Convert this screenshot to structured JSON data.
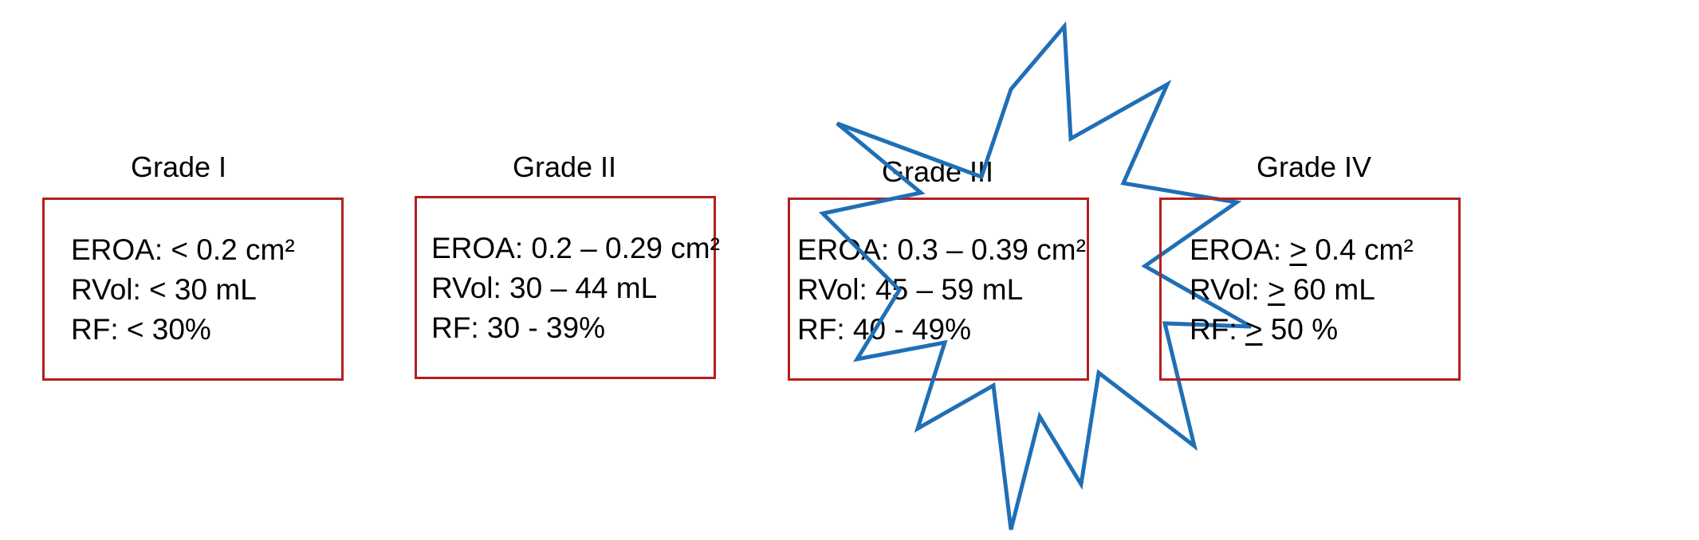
{
  "grades": [
    {
      "title": "Grade I",
      "lines": [
        {
          "label": "EROA: ",
          "op": "<",
          "value": " 0.2 cm²"
        },
        {
          "label": "RVol: ",
          "op": "<",
          "value": " 30 mL"
        },
        {
          "label": "RF: ",
          "op": "<",
          "value": " 30%"
        }
      ]
    },
    {
      "title": "Grade II",
      "lines": [
        {
          "label": "EROA: ",
          "op": "",
          "value": "0.2 – 0.29 cm²"
        },
        {
          "label": "RVol: ",
          "op": "",
          "value": "30 – 44 mL"
        },
        {
          "label": "RF: ",
          "op": "",
          "value": "30 - 39%"
        }
      ]
    },
    {
      "title": "Grade III",
      "lines": [
        {
          "label": "EROA: ",
          "op": "",
          "value": "0.3 – 0.39 cm²"
        },
        {
          "label": "RVol: ",
          "op": "",
          "value": "45 – 59 mL"
        },
        {
          "label": "RF: ",
          "op": "",
          "value": "40 - 49%"
        }
      ]
    },
    {
      "title": "Grade IV",
      "lines": [
        {
          "label": "EROA: ",
          "op": ">",
          "value": " 0.4 cm²"
        },
        {
          "label": "RVol: ",
          "op": ">",
          "value": " 60 mL"
        },
        {
          "label": "RF: ",
          "op": ">",
          "value": " 50 %"
        }
      ]
    }
  ],
  "colors": {
    "box_border": "#b41f1f",
    "burst_stroke": "#1f6fb5"
  }
}
